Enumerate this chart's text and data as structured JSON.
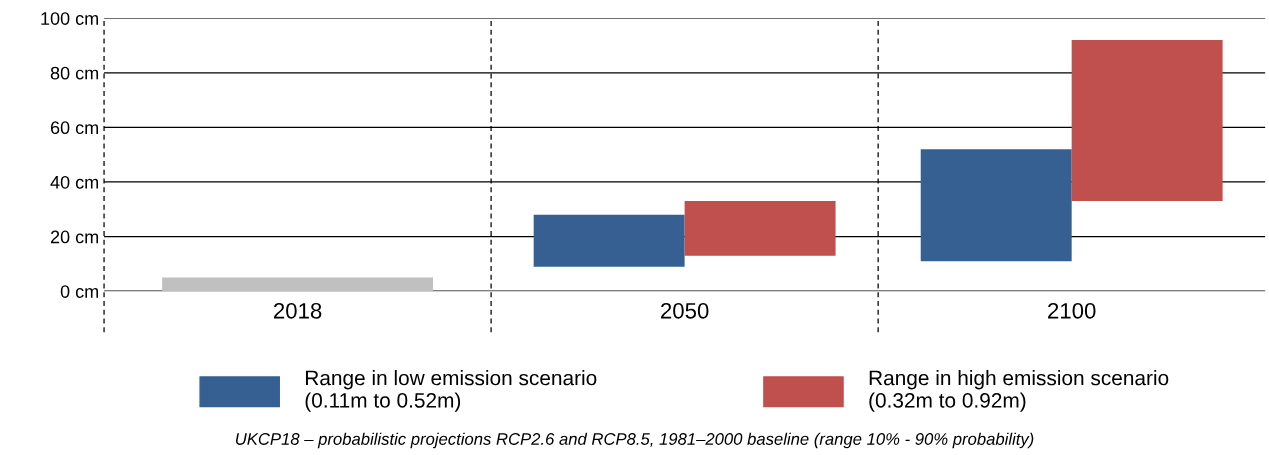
{
  "chart_data": {
    "type": "bar",
    "categories": [
      "2018",
      "2050",
      "2100"
    ],
    "series": [
      {
        "color": "#c0c0c0",
        "values": [
          5,
          null,
          null
        ],
        "base": [
          0,
          null,
          null
        ]
      },
      {
        "name": "Range in low emission scenario\n(0.11m to 0.52m)",
        "color": "#376092",
        "values": [
          null,
          19,
          41
        ],
        "base": [
          null,
          9,
          11
        ]
      },
      {
        "name": "Range in high emission scenario\n(0.32m to 0.92m)",
        "color": "#c0504d",
        "values": [
          null,
          20,
          59
        ],
        "base": [
          null,
          13,
          33
        ]
      }
    ],
    "ylim": [
      0,
      100
    ],
    "yticks": [
      {
        "value": 0,
        "label": "0 cm"
      },
      {
        "value": 20,
        "label": "20 cm"
      },
      {
        "value": 40,
        "label": "40 cm"
      },
      {
        "value": 60,
        "label": "60 cm"
      },
      {
        "value": 80,
        "label": "80 cm"
      },
      {
        "value": 100,
        "label": "100 cm"
      }
    ],
    "grid": "y",
    "legend": "bottom",
    "annotations": [
      "UKCP18 – probabilistic projections RCP2.6 and RCP8.5, 1981–2000 baseline (range 10% - 90% probability)"
    ]
  }
}
